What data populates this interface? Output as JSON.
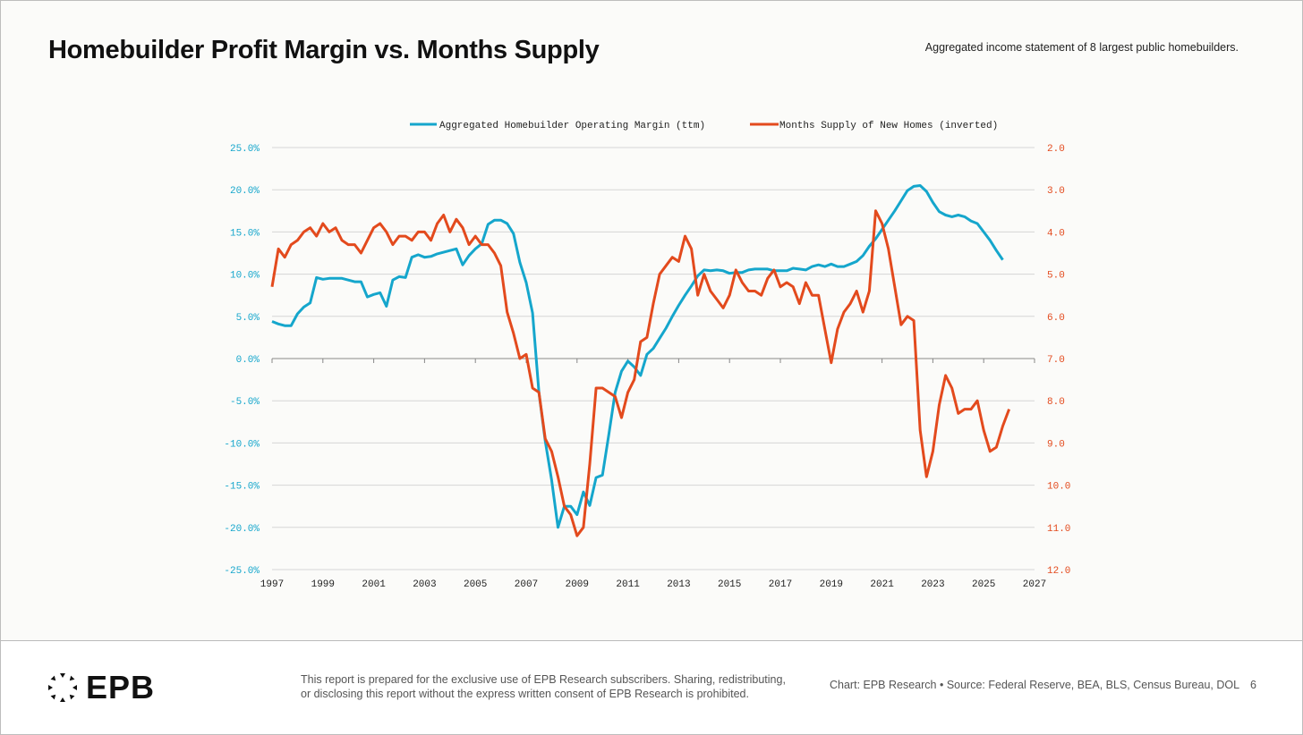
{
  "header": {
    "title": "Homebuilder Profit Margin vs. Months Supply",
    "subtitle": "Aggregated income statement of 8 largest public homebuilders."
  },
  "footer": {
    "logo_text": "EPB",
    "disclaimer_line1": "This report is prepared for the exclusive use of EPB Research subscribers. Sharing, redistributing,",
    "disclaimer_line2": "or disclosing this report without the express written consent of EPB Research is prohibited.",
    "source": "Chart: EPB Research  •  Source: Federal Reserve, BEA, BLS, Census Bureau, DOL",
    "page_number": "6"
  },
  "colors": {
    "margin": "#15a6cc",
    "supply": "#e34a1d"
  },
  "chart_data": {
    "type": "line",
    "title": "Homebuilder Profit Margin vs. Months Supply",
    "legend_position": "top-center",
    "grid": true,
    "xlim": [
      1997,
      2027
    ],
    "x_ticks": [
      "1997",
      "1999",
      "2001",
      "2003",
      "2005",
      "2007",
      "2009",
      "2011",
      "2013",
      "2015",
      "2017",
      "2019",
      "2021",
      "2023",
      "2025",
      "2027"
    ],
    "y_left": {
      "lim": [
        -25,
        25
      ],
      "ticks": [
        "25.0%",
        "20.0%",
        "15.0%",
        "10.0%",
        "5.0%",
        "0.0%",
        "-5.0%",
        "-10.0%",
        "-15.0%",
        "-20.0%",
        "-25.0%"
      ]
    },
    "y_right": {
      "lim": [
        2,
        12
      ],
      "inverted": true,
      "ticks": [
        "2.0",
        "3.0",
        "4.0",
        "5.0",
        "6.0",
        "7.0",
        "8.0",
        "9.0",
        "10.0",
        "11.0",
        "12.0"
      ]
    },
    "x_start": 1997,
    "x_step": 0.25,
    "series": [
      {
        "name": "Aggregated Homebuilder Operating Margin (ttm)",
        "axis": "left",
        "values": [
          4.4,
          4.1,
          3.9,
          3.9,
          5.3,
          6.1,
          6.6,
          9.6,
          9.4,
          9.5,
          9.5,
          9.5,
          9.3,
          9.1,
          9.1,
          7.3,
          7.6,
          7.8,
          6.2,
          9.3,
          9.7,
          9.6,
          12.0,
          12.3,
          12.0,
          12.1,
          12.4,
          12.6,
          12.8,
          13.0,
          11.1,
          12.2,
          13.0,
          13.6,
          15.9,
          16.4,
          16.4,
          16.0,
          14.8,
          11.4,
          9.0,
          5.4,
          -4.0,
          -9.8,
          -14.4,
          -20.0,
          -17.5,
          -17.5,
          -18.5,
          -15.8,
          -17.4,
          -14.1,
          -13.8,
          -9.0,
          -4.0,
          -1.5,
          -0.3,
          -1.0,
          -2.0,
          0.5,
          1.2,
          2.4,
          3.6,
          5.0,
          6.3,
          7.5,
          8.6,
          9.8,
          10.5,
          10.4,
          10.5,
          10.4,
          10.1,
          10.2,
          10.2,
          10.5,
          10.6,
          10.6,
          10.6,
          10.4,
          10.4,
          10.4,
          10.7,
          10.6,
          10.5,
          10.9,
          11.1,
          10.9,
          11.2,
          10.9,
          10.9,
          11.2,
          11.5,
          12.2,
          13.3,
          14.2,
          15.3,
          16.4,
          17.5,
          18.7,
          19.9,
          20.4,
          20.5,
          19.8,
          18.5,
          17.4,
          17.0,
          16.8,
          17.0,
          16.8,
          16.3,
          16.0,
          15.0,
          14.0,
          12.8,
          11.7
        ]
      },
      {
        "name": "Months Supply of New Homes (inverted)",
        "axis": "right",
        "values": [
          5.3,
          4.4,
          4.6,
          4.3,
          4.2,
          4.0,
          3.9,
          4.1,
          3.8,
          4.0,
          3.9,
          4.2,
          4.3,
          4.3,
          4.5,
          4.2,
          3.9,
          3.8,
          4.0,
          4.3,
          4.1,
          4.1,
          4.2,
          4.0,
          4.0,
          4.2,
          3.8,
          3.6,
          4.0,
          3.7,
          3.9,
          4.3,
          4.1,
          4.3,
          4.3,
          4.5,
          4.8,
          5.9,
          6.4,
          7.0,
          6.9,
          7.7,
          7.8,
          8.9,
          9.2,
          9.8,
          10.5,
          10.7,
          11.2,
          11.0,
          9.5,
          7.7,
          7.7,
          7.8,
          7.9,
          8.4,
          7.8,
          7.5,
          6.6,
          6.5,
          5.7,
          5.0,
          4.8,
          4.6,
          4.7,
          4.1,
          4.4,
          5.5,
          5.0,
          5.4,
          5.6,
          5.8,
          5.5,
          4.9,
          5.2,
          5.4,
          5.4,
          5.5,
          5.1,
          4.9,
          5.3,
          5.2,
          5.3,
          5.7,
          5.2,
          5.5,
          5.5,
          6.3,
          7.1,
          6.3,
          5.9,
          5.7,
          5.4,
          5.9,
          5.4,
          3.5,
          3.8,
          4.4,
          5.3,
          6.2,
          6.0,
          6.1,
          8.7,
          9.8,
          9.2,
          8.1,
          7.4,
          7.7,
          8.3,
          8.2,
          8.2,
          8.0,
          8.7,
          9.2,
          9.1,
          8.6,
          8.2
        ]
      }
    ]
  }
}
